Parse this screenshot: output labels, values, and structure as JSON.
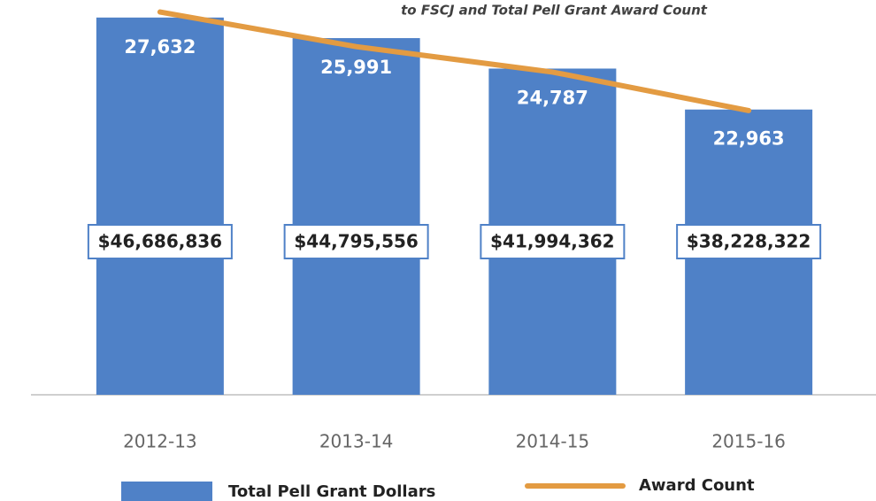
{
  "chart_data": {
    "type": "bar",
    "title": "to FSCJ and Total Pell Grant Award Count",
    "categories": [
      "2012-13",
      "2013-14",
      "2014-15",
      "2015-16"
    ],
    "series": [
      {
        "name": "Total Pell Grant Dollars",
        "type": "bar",
        "color": "#4f81c7",
        "values": [
          46686836,
          44795556,
          41994362,
          38228322
        ],
        "value_labels": [
          "$46,686,836",
          "$44,795,556",
          "$41,994,362",
          "$38,228,322"
        ]
      },
      {
        "name": "Award Count",
        "type": "line",
        "axis": "y2",
        "color": "#e39b42",
        "values": [
          27632,
          25991,
          24787,
          22963
        ],
        "value_labels": [
          "27,632",
          "25,991",
          "24,787",
          "22,963"
        ]
      }
    ],
    "ylim": [
      12000000,
      48300000
    ],
    "y2lim": [
      9500,
      28200
    ]
  }
}
